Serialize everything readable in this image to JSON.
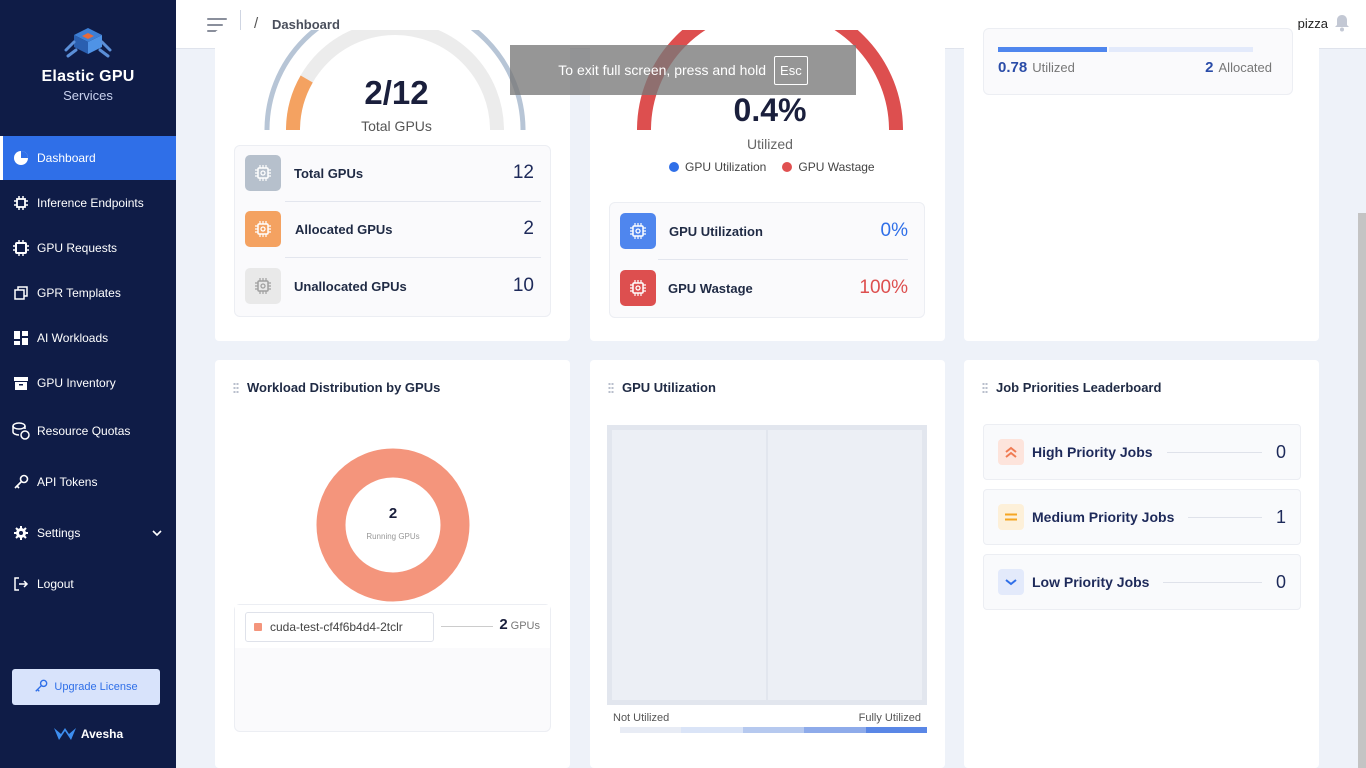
{
  "app": {
    "title": "Elastic GPU",
    "subtitle": "Services",
    "brand": "Avesha"
  },
  "sidebar": {
    "items": [
      {
        "label": "Dashboard",
        "icon": "pie-chart-icon",
        "active": true
      },
      {
        "label": "Inference Endpoints",
        "icon": "gear-chip-icon"
      },
      {
        "label": "GPU Requests",
        "icon": "chip-icon"
      },
      {
        "label": "GPR Templates",
        "icon": "copy-icon"
      },
      {
        "label": "AI Workloads",
        "icon": "grid-icon"
      },
      {
        "label": "GPU Inventory",
        "icon": "archive-icon"
      },
      {
        "label": "Resource Quotas",
        "icon": "coins-icon"
      },
      {
        "label": "API Tokens",
        "icon": "key-icon"
      },
      {
        "label": "Settings",
        "icon": "gear-icon"
      },
      {
        "label": "Logout",
        "icon": "logout-icon"
      }
    ],
    "upgrade_label": "Upgrade License"
  },
  "header": {
    "breadcrumb_sep": "/",
    "breadcrumb": "Dashboard",
    "user": "pizza"
  },
  "toast": {
    "text": "To exit full screen, press and hold",
    "key": "Esc"
  },
  "gpu_totals": {
    "gauge_value": "2/12",
    "gauge_label": "Total GPUs",
    "allocated_fraction": 0.1667,
    "rows": [
      {
        "label": "Total GPUs",
        "value": "12",
        "color": "#b6c0cc"
      },
      {
        "label": "Allocated GPUs",
        "value": "2",
        "color": "#f4a261"
      },
      {
        "label": "Unallocated GPUs",
        "value": "10",
        "color": "#e7e7e7"
      }
    ]
  },
  "utilization_gauge": {
    "value": "0.4%",
    "label": "Utilized",
    "legend": [
      {
        "label": "GPU Utilization",
        "color": "#2f6fe8"
      },
      {
        "label": "GPU Wastage",
        "color": "#e05050"
      }
    ],
    "rows": [
      {
        "label": "GPU Utilization",
        "value": "0%",
        "color": "#4f86ee"
      },
      {
        "label": "GPU Wastage",
        "value": "100%",
        "color": "#e05050"
      }
    ]
  },
  "allocation_bar": {
    "utilized_value": "0.78",
    "utilized_label": "Utilized",
    "allocated_value": "2",
    "allocated_label": "Allocated"
  },
  "workload_distribution": {
    "title": "Workload Distribution by GPUs",
    "center_value": "2",
    "center_label": "Running GPUs",
    "workloads": [
      {
        "name": "cuda-test-cf4f6b4d4-2tclr",
        "gpus": "2",
        "unit": "GPUs",
        "color": "#f4957c"
      }
    ]
  },
  "gpu_utilization": {
    "title": "GPU Utilization",
    "legend_low": "Not Utilized",
    "legend_high": "Fully Utilized",
    "scale_colors": [
      "#e8ecf5",
      "#dae4f7",
      "#b6c9ef",
      "#8eabea",
      "#5a87e6"
    ]
  },
  "job_priorities": {
    "title": "Job Priorities Leaderboard",
    "rows": [
      {
        "label": "High Priority Jobs",
        "value": "0",
        "icon": "double-chevron-up-icon",
        "color": "#f07a52",
        "bg": "#fde4dc"
      },
      {
        "label": "Medium Priority Jobs",
        "value": "1",
        "icon": "equals-icon",
        "color": "#f5a623",
        "bg": "#fdf0d9"
      },
      {
        "label": "Low Priority Jobs",
        "value": "0",
        "icon": "chevron-down-icon",
        "color": "#2f6fe8",
        "bg": "#e3eafb"
      }
    ]
  }
}
